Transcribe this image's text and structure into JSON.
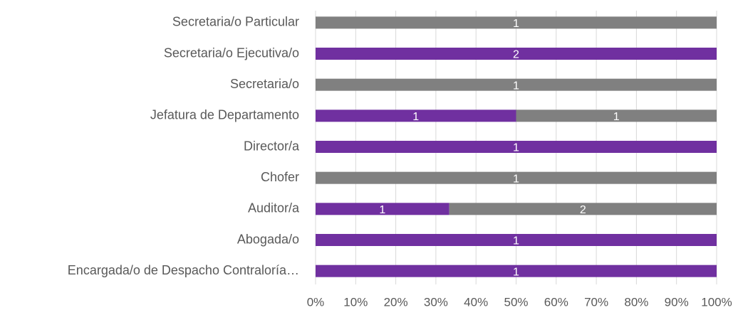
{
  "chart_data": {
    "type": "bar",
    "orientation": "horizontal",
    "stacking": "percent",
    "categories": [
      "Secretaria/o Particular",
      "Secretaria/o Ejecutiva/o",
      "Secretaria/o",
      "Jefatura de Departamento",
      "Director/a",
      "Chofer",
      "Auditor/a",
      "Abogada/o",
      "Encargada/o de Despacho Contraloría…"
    ],
    "series": [
      {
        "color": "#7030a0",
        "values": [
          null,
          2,
          null,
          1,
          1,
          null,
          1,
          1,
          1
        ]
      },
      {
        "color": "#808080",
        "values": [
          1,
          null,
          1,
          1,
          null,
          1,
          2,
          null,
          null
        ]
      }
    ],
    "xlim": [
      0,
      100
    ],
    "xticks": [
      {
        "value": 0,
        "label": "0%"
      },
      {
        "value": 10,
        "label": "10%"
      },
      {
        "value": 20,
        "label": "20%"
      },
      {
        "value": 30,
        "label": "30%"
      },
      {
        "value": 40,
        "label": "40%"
      },
      {
        "value": 50,
        "label": "50%"
      },
      {
        "value": 60,
        "label": "60%"
      },
      {
        "value": 70,
        "label": "70%"
      },
      {
        "value": 80,
        "label": "80%"
      },
      {
        "value": 90,
        "label": "90%"
      },
      {
        "value": 100,
        "label": "100%"
      }
    ],
    "grid": true
  }
}
